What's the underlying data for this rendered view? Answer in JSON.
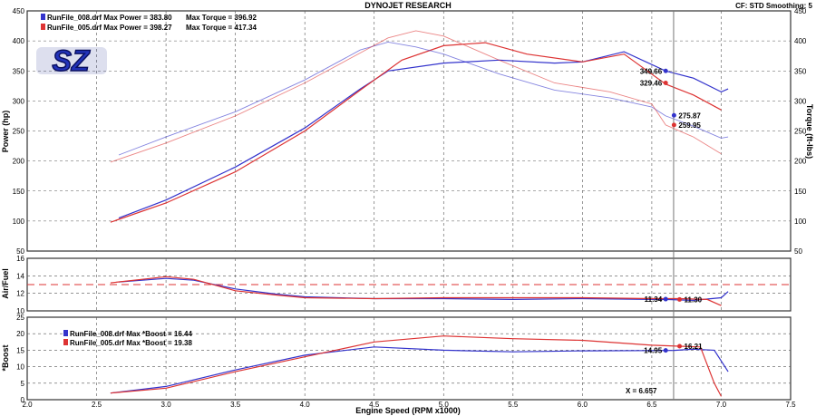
{
  "header": {
    "title": "DYNOJET RESEARCH",
    "cf_label": "CF: STD  Smoothing: 5"
  },
  "logo": {
    "text": "SZ"
  },
  "colors": {
    "run008": "#3333cc",
    "run005": "#dd3333",
    "grid": "#555555",
    "cursor": "#777777"
  },
  "top_legend": [
    {
      "label": "RunFile_008.drf Max Power = 383.80",
      "torque": "Max Torque = 396.92",
      "color": "#3333cc"
    },
    {
      "label": "RunFile_005.drf Max Power = 398.27",
      "torque": "Max Torque = 417.34",
      "color": "#dd3333"
    }
  ],
  "boost_legend": [
    {
      "label": "RunFile_008.drf Max *Boost = 16.44",
      "color": "#3333cc"
    },
    {
      "label": "RunFile_005.drf Max *Boost = 19.38",
      "color": "#dd3333"
    }
  ],
  "cursor": {
    "x": 6.657,
    "label": "X = 6.657"
  },
  "xaxis": {
    "label": "Engine Speed (RPM x1000)",
    "min": 2.0,
    "max": 7.5,
    "ticks": [
      "2.0",
      "2.5",
      "3.0",
      "3.5",
      "4.0",
      "4.5",
      "5.0",
      "5.5",
      "6.0",
      "6.5",
      "7.0",
      "7.5"
    ]
  },
  "chart_data": [
    {
      "type": "line",
      "title": "DYNOJET RESEARCH",
      "xlabel": "Engine Speed (RPM x1000)",
      "ylabel": "Power (hp)",
      "y2label": "Torque (ft-lbs)",
      "xlim": [
        2.0,
        7.5
      ],
      "ylim": [
        50,
        450
      ],
      "y2lim": [
        50,
        450
      ],
      "yticks": [
        "50",
        "100",
        "150",
        "200",
        "250",
        "300",
        "350",
        "400",
        "450"
      ],
      "grid": true,
      "legend": "top-left",
      "series": [
        {
          "name": "RunFile_008.drf Power",
          "axis": "power",
          "color": "#3333cc",
          "x": [
            2.66,
            3.0,
            3.5,
            4.0,
            4.4,
            4.6,
            5.0,
            5.4,
            5.8,
            6.0,
            6.3,
            6.6,
            6.8,
            7.0,
            7.05
          ],
          "y": [
            105,
            135,
            190,
            255,
            320,
            350,
            363,
            368,
            363,
            365,
            382,
            350,
            338,
            315,
            320
          ]
        },
        {
          "name": "RunFile_005.drf Power",
          "axis": "power",
          "color": "#dd3333",
          "x": [
            2.6,
            3.0,
            3.5,
            4.0,
            4.4,
            4.7,
            5.0,
            5.3,
            5.6,
            6.0,
            6.3,
            6.6,
            6.8,
            7.0
          ],
          "y": [
            98,
            130,
            182,
            250,
            318,
            368,
            392,
            397,
            378,
            365,
            378,
            328,
            310,
            285
          ]
        },
        {
          "name": "RunFile_008.drf Torque",
          "axis": "torque",
          "color": "#3333cc",
          "x": [
            2.66,
            3.0,
            3.5,
            4.0,
            4.4,
            4.6,
            4.8,
            5.0,
            5.4,
            5.8,
            6.2,
            6.5,
            6.6,
            6.8,
            7.0,
            7.05
          ],
          "y": [
            210,
            240,
            282,
            335,
            385,
            398,
            390,
            378,
            345,
            318,
            305,
            290,
            275,
            258,
            238,
            240
          ]
        },
        {
          "name": "RunFile_005.drf Torque",
          "axis": "torque",
          "color": "#dd3333",
          "x": [
            2.6,
            3.0,
            3.5,
            4.0,
            4.4,
            4.6,
            4.8,
            5.0,
            5.4,
            5.8,
            6.2,
            6.5,
            6.6,
            6.8,
            7.0
          ],
          "y": [
            198,
            230,
            275,
            330,
            380,
            405,
            417,
            408,
            368,
            330,
            315,
            295,
            260,
            240,
            212
          ]
        }
      ],
      "annotations": [
        {
          "text": "349.66",
          "x": 6.6,
          "y": 350,
          "color": "#3333cc"
        },
        {
          "text": "329.46",
          "x": 6.6,
          "y": 330,
          "color": "#dd3333"
        },
        {
          "text": "275.87",
          "x": 6.66,
          "y": 276,
          "color": "#3333cc"
        },
        {
          "text": "259.95",
          "x": 6.66,
          "y": 260,
          "color": "#dd3333"
        }
      ]
    },
    {
      "type": "line",
      "ylabel": "Air/Fuel",
      "xlim": [
        2.0,
        7.5
      ],
      "ylim": [
        10,
        16
      ],
      "yticks": [
        "10",
        "12",
        "14",
        "16"
      ],
      "grid": true,
      "reference_line": 13,
      "series": [
        {
          "name": "RunFile_008.drf Air/Fuel",
          "color": "#3333cc",
          "x": [
            2.66,
            3.0,
            3.2,
            3.5,
            3.8,
            4.0,
            4.5,
            5.0,
            5.5,
            6.0,
            6.5,
            6.6,
            6.8,
            7.0,
            7.05
          ],
          "y": [
            13.3,
            13.7,
            13.5,
            12.5,
            11.9,
            11.6,
            11.4,
            11.4,
            11.3,
            11.4,
            11.3,
            11.3,
            11.2,
            11.5,
            12.2
          ]
        },
        {
          "name": "RunFile_005.drf Air/Fuel",
          "color": "#dd3333",
          "x": [
            2.6,
            3.0,
            3.2,
            3.5,
            3.8,
            4.0,
            4.5,
            5.0,
            5.5,
            6.0,
            6.5,
            6.7,
            6.9,
            7.0
          ],
          "y": [
            13.2,
            13.9,
            13.6,
            12.3,
            11.8,
            11.5,
            11.4,
            11.5,
            11.5,
            11.5,
            11.4,
            11.4,
            11.3,
            10.6
          ]
        }
      ],
      "annotations": [
        {
          "text": "11.34",
          "x": 6.6,
          "y": 11.34,
          "color": "#3333cc"
        },
        {
          "text": "11.30",
          "x": 6.7,
          "y": 11.3,
          "color": "#dd3333"
        }
      ]
    },
    {
      "type": "line",
      "ylabel": "*Boost",
      "xlim": [
        2.0,
        7.5
      ],
      "ylim": [
        0,
        25
      ],
      "yticks": [
        "0",
        "5",
        "10",
        "15",
        "20",
        "25"
      ],
      "grid": true,
      "legend": "top-left",
      "series": [
        {
          "name": "RunFile_008.drf Max *Boost = 16.44",
          "color": "#3333cc",
          "x": [
            2.6,
            3.0,
            3.5,
            4.0,
            4.5,
            5.0,
            5.5,
            6.0,
            6.5,
            6.66,
            6.8,
            6.95,
            7.05
          ],
          "y": [
            2,
            4,
            9,
            13.5,
            16,
            15,
            14.5,
            14.8,
            14.9,
            14.95,
            15.3,
            15,
            8.5
          ]
        },
        {
          "name": "RunFile_005.drf Max *Boost = 19.38",
          "color": "#dd3333",
          "x": [
            2.6,
            3.0,
            3.5,
            4.0,
            4.5,
            5.0,
            5.5,
            6.0,
            6.5,
            6.7,
            6.85,
            6.95,
            7.0
          ],
          "y": [
            2,
            3.5,
            8.5,
            13,
            17.5,
            19.3,
            18.5,
            18,
            16.5,
            16.2,
            16,
            5,
            1
          ]
        }
      ],
      "annotations": [
        {
          "text": "14.95",
          "x": 6.6,
          "y": 14.95,
          "color": "#3333cc"
        },
        {
          "text": "16.21",
          "x": 6.7,
          "y": 16.21,
          "color": "#dd3333"
        }
      ]
    }
  ]
}
